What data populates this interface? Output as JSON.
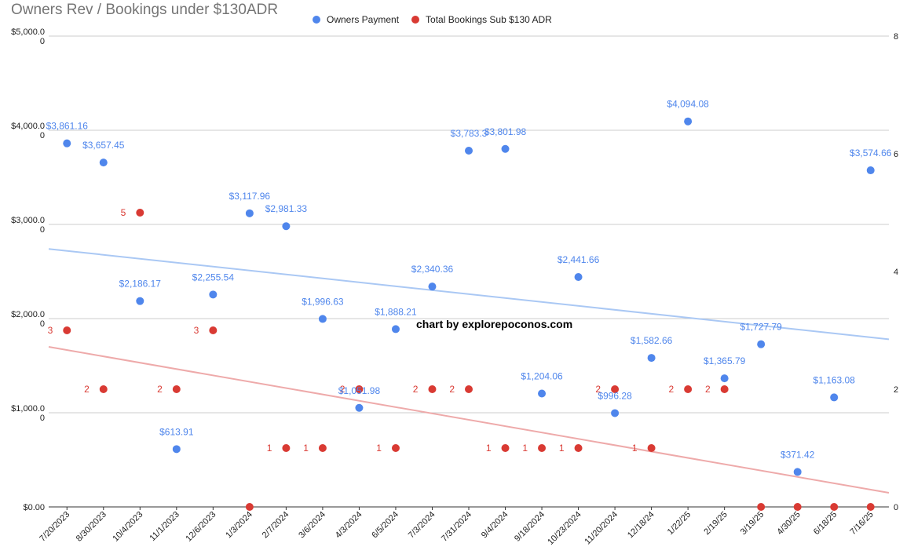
{
  "chart_data": {
    "type": "scatter",
    "title": "Owners Rev / Bookings under $130ADR",
    "annotation": "chart by explorepoconos.com",
    "legend_position": "top",
    "grid": true,
    "colors": {
      "owners": "#4f86ec",
      "bookings": "#d93a33",
      "owners_trend": "#aac8f4",
      "bookings_trend": "#eeaaaa",
      "grid": "#cccccc"
    },
    "left_axis": {
      "range": [
        0,
        5000
      ],
      "ticks": [
        {
          "v": 0,
          "label": "$0.00",
          "label2": ""
        },
        {
          "v": 1000,
          "label": "$1,000.0",
          "label2": "0"
        },
        {
          "v": 2000,
          "label": "$2,000.0",
          "label2": "0"
        },
        {
          "v": 3000,
          "label": "$3,000.0",
          "label2": "0"
        },
        {
          "v": 4000,
          "label": "$4,000.0",
          "label2": "0"
        },
        {
          "v": 5000,
          "label": "$5,000.0",
          "label2": "0"
        }
      ]
    },
    "right_axis": {
      "range": [
        0,
        8
      ],
      "ticks": [
        {
          "v": 0,
          "label": "0"
        },
        {
          "v": 2,
          "label": "2"
        },
        {
          "v": 4,
          "label": "4"
        },
        {
          "v": 6,
          "label": "6"
        },
        {
          "v": 8,
          "label": "8"
        }
      ]
    },
    "categories": [
      "7/20/2023",
      "8/30/2023",
      "10/4/2023",
      "11/1/2023",
      "12/6/2023",
      "1/3/2024",
      "2/7/2024",
      "3/6/2024",
      "4/3/2024",
      "6/5/2024",
      "7/3/2024",
      "7/31/2024",
      "9/4/2024",
      "9/18/2024",
      "10/23/2024",
      "11/20/2024",
      "12/18/24",
      "1/22/25",
      "2/19/25",
      "3/19/25",
      "4/30/25",
      "6/18/25",
      "7/16/25"
    ],
    "owners_payment": {
      "name": "Owners Payment",
      "points": [
        {
          "i": 0,
          "v": 3861.16,
          "label": "$3,861.16"
        },
        {
          "i": 1,
          "v": 3657.45,
          "label": "$3,657.45"
        },
        {
          "i": 2,
          "v": 2186.17,
          "label": "$2,186.17"
        },
        {
          "i": 3,
          "v": 613.91,
          "label": "$613.91"
        },
        {
          "i": 4,
          "v": 2255.54,
          "label": "$2,255.54"
        },
        {
          "i": 5,
          "v": 3117.96,
          "label": "$3,117.96"
        },
        {
          "i": 6,
          "v": 2981.33,
          "label": "$2,981.33"
        },
        {
          "i": 7,
          "v": 1996.63,
          "label": "$1,996.63"
        },
        {
          "i": 8,
          "v": 1051.98,
          "label": "$1,051.98"
        },
        {
          "i": 9,
          "v": 1888.21,
          "label": "$1,888.21"
        },
        {
          "i": 10,
          "v": 2340.36,
          "label": "$2,340.36"
        },
        {
          "i": 11,
          "v": 3783.3,
          "label": "$3,783.3"
        },
        {
          "i": 12,
          "v": 3801.98,
          "label": "$3,801.98"
        },
        {
          "i": 13,
          "v": 1204.06,
          "label": "$1,204.06"
        },
        {
          "i": 14,
          "v": 2441.66,
          "label": "$2,441.66"
        },
        {
          "i": 15,
          "v": 996.28,
          "label": "$996.28"
        },
        {
          "i": 16,
          "v": 1582.66,
          "label": "$1,582.66"
        },
        {
          "i": 17,
          "v": 4094.08,
          "label": "$4,094.08"
        },
        {
          "i": 18,
          "v": 1365.79,
          "label": "$1,365.79"
        },
        {
          "i": 19,
          "v": 1727.79,
          "label": "$1,727.79"
        },
        {
          "i": 20,
          "v": 371.42,
          "label": "$371.42"
        },
        {
          "i": 21,
          "v": 1163.08,
          "label": "$1,163.08"
        },
        {
          "i": 22,
          "v": 3574.66,
          "label": "$3,574.66"
        }
      ],
      "trendline": [
        2740,
        1780
      ]
    },
    "total_bookings": {
      "name": "Total Bookings Sub $130 ADR",
      "points": [
        {
          "i": 0,
          "v": 3,
          "label": "3"
        },
        {
          "i": 1,
          "v": 2,
          "label": "2"
        },
        {
          "i": 2,
          "v": 5,
          "label": "5"
        },
        {
          "i": 3,
          "v": 2,
          "label": "2"
        },
        {
          "i": 4,
          "v": 3,
          "label": "3"
        },
        {
          "i": 5,
          "v": 0,
          "label": ""
        },
        {
          "i": 6,
          "v": 1,
          "label": "1"
        },
        {
          "i": 7,
          "v": 1,
          "label": "1"
        },
        {
          "i": 8,
          "v": 2,
          "label": "2"
        },
        {
          "i": 9,
          "v": 1,
          "label": "1"
        },
        {
          "i": 10,
          "v": 2,
          "label": "2"
        },
        {
          "i": 11,
          "v": 2,
          "label": "2"
        },
        {
          "i": 12,
          "v": 1,
          "label": "1"
        },
        {
          "i": 13,
          "v": 1,
          "label": "1"
        },
        {
          "i": 14,
          "v": 1,
          "label": "1"
        },
        {
          "i": 15,
          "v": 2,
          "label": "2"
        },
        {
          "i": 16,
          "v": 1,
          "label": "1"
        },
        {
          "i": 17,
          "v": 2,
          "label": "2"
        },
        {
          "i": 18,
          "v": 2,
          "label": "2"
        },
        {
          "i": 19,
          "v": 0,
          "label": ""
        },
        {
          "i": 20,
          "v": 0,
          "label": ""
        },
        {
          "i": 21,
          "v": 0,
          "label": ""
        },
        {
          "i": 22,
          "v": 0,
          "label": ""
        }
      ],
      "trendline": [
        2.72,
        0.24
      ]
    }
  }
}
